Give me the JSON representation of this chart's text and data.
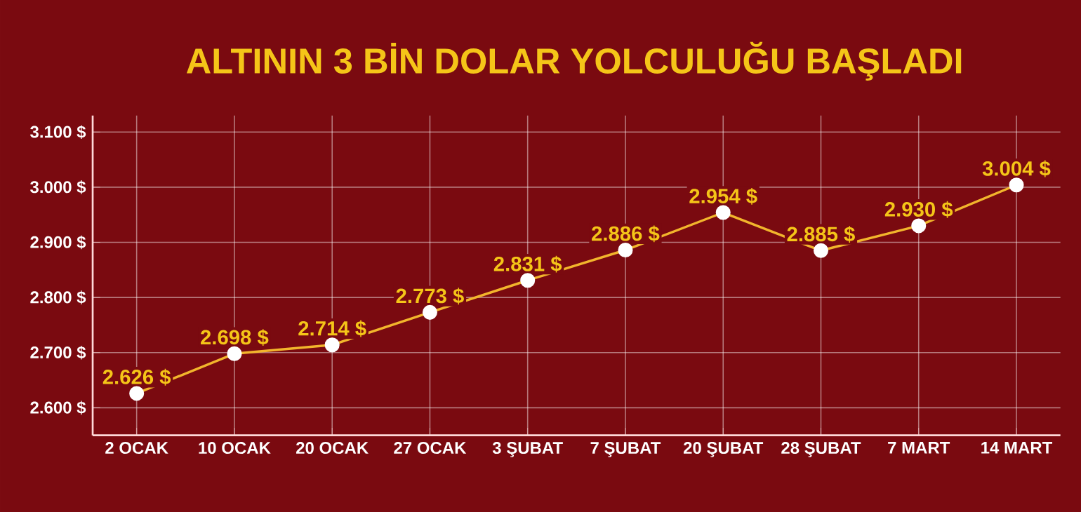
{
  "chart_data": {
    "type": "line",
    "title": "ALTININ 3 BİN DOLAR YOLCULUĞU BAŞLADI",
    "categories": [
      "2 OCAK",
      "10 OCAK",
      "20 OCAK",
      "27 OCAK",
      "3 ŞUBAT",
      "7 ŞUBAT",
      "20 ŞUBAT",
      "28 ŞUBAT",
      "7 MART",
      "14 MART"
    ],
    "series": [
      {
        "color": "#f2b52c",
        "values": [
          2626,
          2698,
          2714,
          2773,
          2831,
          2886,
          2954,
          2885,
          2930,
          3004
        ],
        "value_labels": [
          "2.626 $",
          "2.698 $",
          "2.714 $",
          "2.773 $",
          "2.831 $",
          "2.886 $",
          "2.954 $",
          "2.885 $",
          "2.930 $",
          "3.004 $"
        ]
      }
    ],
    "ylim": [
      2550,
      3130
    ],
    "yticks": [
      {
        "value": 2600,
        "label": "2.600 $"
      },
      {
        "value": 2700,
        "label": "2.700 $"
      },
      {
        "value": 2800,
        "label": "2.800 $"
      },
      {
        "value": 2900,
        "label": "2.900 $"
      },
      {
        "value": 3000,
        "label": "3.000 $"
      },
      {
        "value": 3100,
        "label": "3.100 $"
      }
    ],
    "grid": true,
    "marker": "circle",
    "line_style": "solid"
  }
}
